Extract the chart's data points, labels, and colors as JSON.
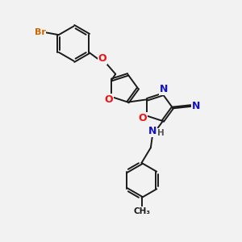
{
  "bg_color": "#f2f2f2",
  "bond_color": "#1a1a1a",
  "bond_width": 1.4,
  "atom_colors": {
    "Br": "#cc6600",
    "O": "#ee1111",
    "N": "#1111cc",
    "C": "#1a1a1a",
    "H": "#555555"
  },
  "doff": 0.045
}
